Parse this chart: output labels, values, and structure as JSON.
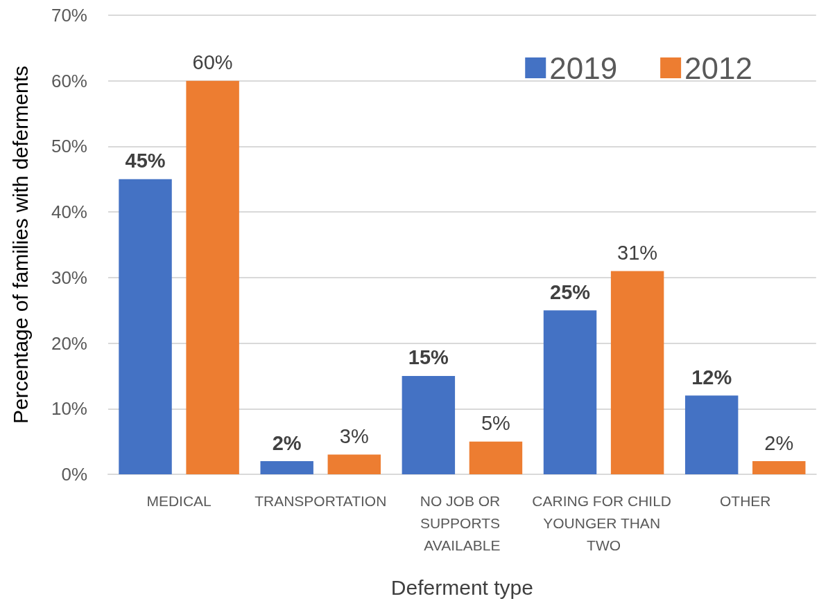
{
  "chart_data": {
    "type": "bar",
    "xlabel": "Deferment type",
    "ylabel": "Percentage of families with deferments",
    "categories": [
      "MEDICAL",
      "TRANSPORTATION",
      "NO JOB OR SUPPORTS AVAILABLE",
      "CARING FOR CHILD YOUNGER THAN TWO",
      "OTHER"
    ],
    "series": [
      {
        "name": "2019",
        "color": "#4472c4",
        "values": [
          45,
          2,
          15,
          25,
          12
        ],
        "value_labels": [
          "45%",
          "2%",
          "15%",
          "25%",
          "12%"
        ]
      },
      {
        "name": "2012",
        "color": "#ed7d31",
        "values": [
          60,
          3,
          5,
          31,
          2
        ],
        "value_labels": [
          "60%",
          "3%",
          "5%",
          "31%",
          "2%"
        ]
      }
    ],
    "ylim": [
      0,
      70
    ],
    "yticks": [
      {
        "value": 0,
        "label": "0%"
      },
      {
        "value": 10,
        "label": "10%"
      },
      {
        "value": 20,
        "label": "20%"
      },
      {
        "value": 30,
        "label": "30%"
      },
      {
        "value": 40,
        "label": "40%"
      },
      {
        "value": 50,
        "label": "50%"
      },
      {
        "value": 60,
        "label": "60%"
      },
      {
        "value": 70,
        "label": "70%"
      }
    ],
    "grid": "y",
    "legend": "top right"
  }
}
